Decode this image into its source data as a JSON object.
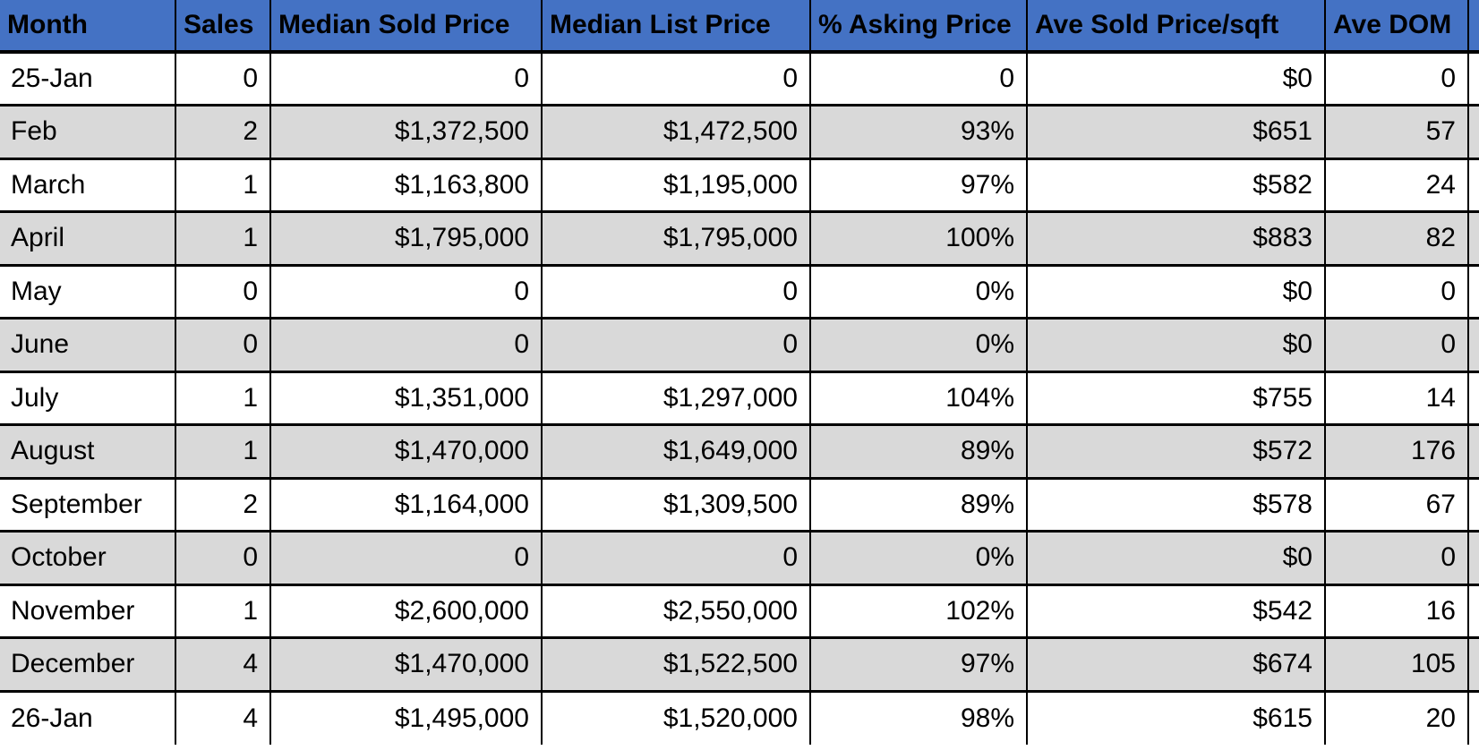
{
  "chart_data": {
    "type": "table",
    "title": "",
    "columns": [
      "Month",
      "Sales",
      "Median Sold Price",
      "Median List Price",
      "% Asking Price",
      "Ave Sold Price/sqft",
      "Ave DOM"
    ],
    "rows": [
      [
        "25-Jan",
        "0",
        "0",
        "0",
        "0",
        "$0",
        "0"
      ],
      [
        "Feb",
        "2",
        "$1,372,500",
        "$1,472,500",
        "93%",
        "$651",
        "57"
      ],
      [
        "March",
        "1",
        "$1,163,800",
        "$1,195,000",
        "97%",
        "$582",
        "24"
      ],
      [
        "April",
        "1",
        "$1,795,000",
        "$1,795,000",
        "100%",
        "$883",
        "82"
      ],
      [
        "May",
        "0",
        "0",
        "0",
        "0%",
        "$0",
        "0"
      ],
      [
        "June",
        "0",
        "0",
        "0",
        "0%",
        "$0",
        "0"
      ],
      [
        "July",
        "1",
        "$1,351,000",
        "$1,297,000",
        "104%",
        "$755",
        "14"
      ],
      [
        "August",
        "1",
        "$1,470,000",
        "$1,649,000",
        "89%",
        "$572",
        "176"
      ],
      [
        "September",
        "2",
        "$1,164,000",
        "$1,309,500",
        "89%",
        "$578",
        "67"
      ],
      [
        "October",
        "0",
        "0",
        "0",
        "0%",
        "$0",
        "0"
      ],
      [
        "November",
        "1",
        "$2,600,000",
        "$2,550,000",
        "102%",
        "$542",
        "16"
      ],
      [
        "December",
        "4",
        "$1,470,000",
        "$1,522,500",
        "97%",
        "$674",
        "105"
      ],
      [
        "26-Jan",
        "4",
        "$1,495,000",
        "$1,520,000",
        "98%",
        "$615",
        "20"
      ]
    ]
  },
  "colors": {
    "header_bg": "#4472C4",
    "header_text": "#000000",
    "cell_text": "#000000",
    "row_bg": "#FFFFFF",
    "row_alt_bg": "#D9D9D9",
    "border": "#000000"
  }
}
